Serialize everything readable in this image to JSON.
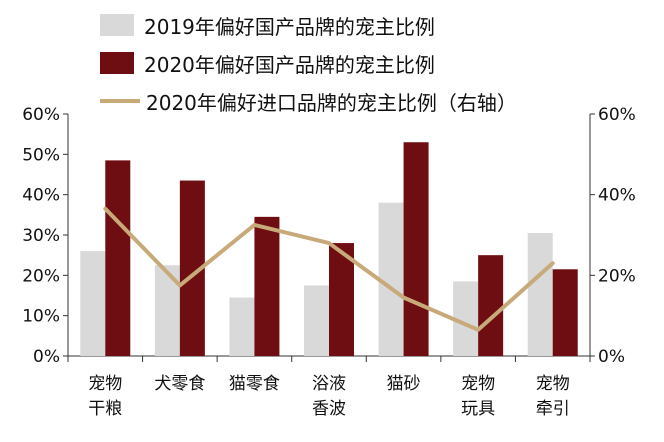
{
  "chart_data": {
    "type": "bar",
    "categories": [
      [
        "宠物",
        "干粮"
      ],
      [
        "犬零食"
      ],
      [
        "猫零食"
      ],
      [
        "浴液",
        "香波"
      ],
      [
        "猫砂"
      ],
      [
        "宠物",
        "玩具"
      ],
      [
        "宠物",
        "牵引"
      ]
    ],
    "series": [
      {
        "name": "2019年偏好国产品牌的宠主比例",
        "type": "bar",
        "axis": "left",
        "values": [
          26,
          22.5,
          14.5,
          17.5,
          38,
          18.5,
          30.5
        ],
        "color": "#d9d9d9"
      },
      {
        "name": "2020年偏好国产品牌的宠主比例",
        "type": "bar",
        "axis": "left",
        "values": [
          48.5,
          43.5,
          34.5,
          28,
          53,
          25,
          21.5
        ],
        "color": "#6e0e12"
      },
      {
        "name": "2020年偏好进口品牌的宠主比例（右轴）",
        "type": "line",
        "axis": "right",
        "values": [
          36.5,
          17.5,
          32.5,
          28,
          14.5,
          6.5,
          23
        ],
        "color": "#c8aa7a"
      }
    ],
    "y_left": {
      "ylim": [
        0,
        60
      ],
      "ticks": [
        "0%",
        "10%",
        "20%",
        "30%",
        "40%",
        "50%",
        "60%"
      ]
    },
    "y_right": {
      "ylim": [
        0,
        60
      ],
      "ticks": [
        "0%",
        "20%",
        "40%",
        "60%"
      ]
    }
  }
}
